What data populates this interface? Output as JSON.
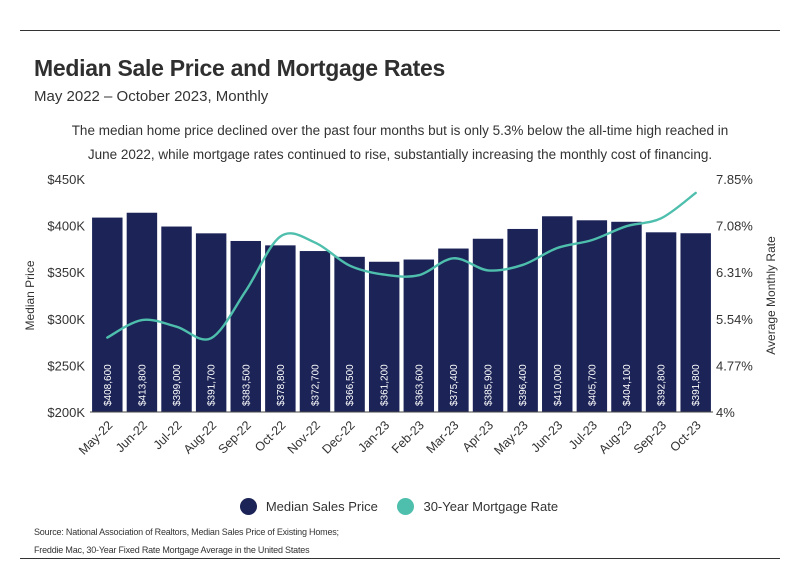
{
  "header": {
    "title": "Median Sale Price and Mortgage Rates",
    "subtitle": "May 2022 – October 2023, Monthly",
    "description": "The median home price declined over the past four months but is only 5.3% below the all-time high reached in June 2022, while mortgage rates continued to rise, substantially increasing the monthly cost of financing."
  },
  "legend": {
    "price_label": "Median Sales Price",
    "rate_label": "30-Year Mortgage Rate"
  },
  "source": {
    "line1": "Source: National Association of Realtors, Median Sales Price of Existing Homes;",
    "line2": "Freddie Mac, 30-Year Fixed Rate Mortgage Average in the United States"
  },
  "colors": {
    "bar": "#1c2457",
    "line": "#4fbfad",
    "bar_label": "#ffffff"
  },
  "chart_data": {
    "type": "bar",
    "categories": [
      "May-22",
      "Jun-22",
      "Jul-22",
      "Aug-22",
      "Sep-22",
      "Oct-22",
      "Nov-22",
      "Dec-22",
      "Jan-23",
      "Feb-23",
      "Mar-23",
      "Apr-23",
      "May-23",
      "Jun-23",
      "Jul-23",
      "Aug-23",
      "Sep-23",
      "Oct-23"
    ],
    "series": [
      {
        "name": "Median Sales Price",
        "type": "bar",
        "axis": "left",
        "values": [
          408600,
          413800,
          399000,
          391700,
          383500,
          378800,
          372700,
          366500,
          361200,
          363600,
          375400,
          385900,
          396400,
          410000,
          405700,
          404100,
          392800,
          391800
        ],
        "labels": [
          "$408,600",
          "$413,800",
          "$399,000",
          "$391,700",
          "$383,500",
          "$378,800",
          "$372,700",
          "$366,500",
          "$361,200",
          "$363,600",
          "$375,400",
          "$385,900",
          "$396,400",
          "$410,000",
          "$405,700",
          "$404,100",
          "$392,800",
          "$391,800"
        ]
      },
      {
        "name": "30-Year Mortgage Rate",
        "type": "line",
        "axis": "right",
        "values": [
          5.23,
          5.52,
          5.41,
          5.22,
          6.0,
          6.9,
          6.8,
          6.42,
          6.27,
          6.26,
          6.54,
          6.34,
          6.43,
          6.71,
          6.84,
          7.07,
          7.2,
          7.62
        ]
      }
    ],
    "y_left": {
      "label": "Median Price",
      "range": [
        200000,
        450000
      ],
      "ticks": [
        200000,
        250000,
        300000,
        350000,
        400000,
        450000
      ],
      "tick_labels": [
        "$200K",
        "$250K",
        "$300K",
        "$350K",
        "$400K",
        "$450K"
      ]
    },
    "y_right": {
      "label": "Average Monthly Rate",
      "range": [
        4,
        7.85
      ],
      "ticks": [
        4,
        4.77,
        5.54,
        6.31,
        7.08,
        7.85
      ],
      "tick_labels": [
        "4%",
        "4.77%",
        "5.54%",
        "6.31%",
        "7.08%",
        "7.85%"
      ]
    },
    "grid": false,
    "legend_position": "bottom"
  }
}
